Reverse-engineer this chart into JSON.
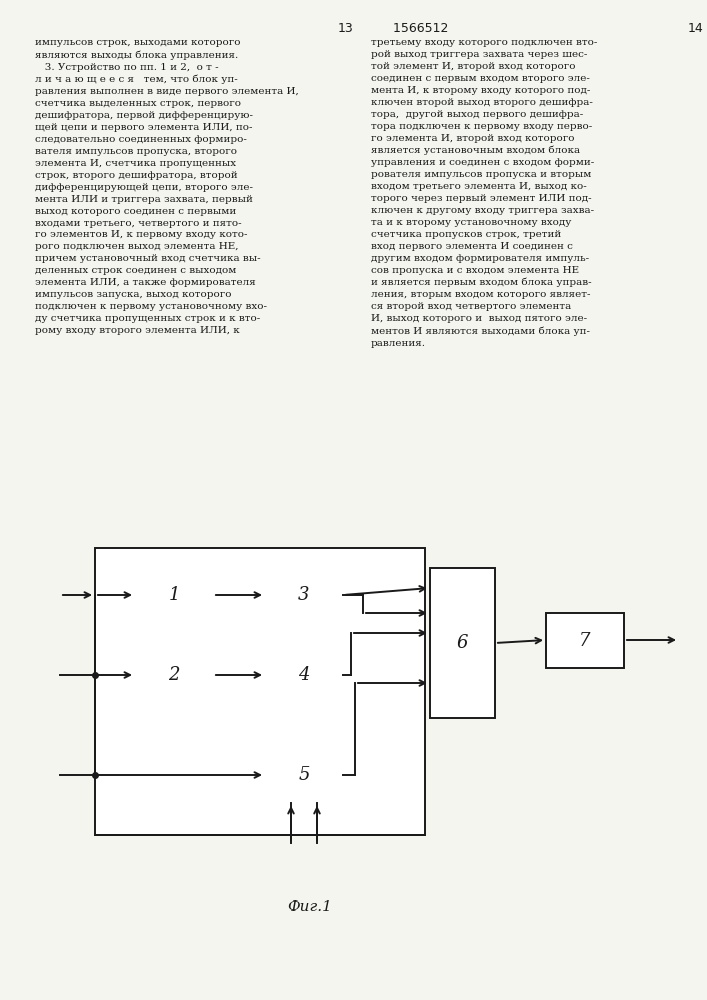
{
  "title": "Фиг.1",
  "bg_color": "#f5f5f0",
  "line_color": "#1a1a1a",
  "text_color": "#1a1a1a",
  "fig_width": 7.07,
  "fig_height": 10.0,
  "left_text": "импульсов строк, выходами которого\nявляются выходы блока управления.\n   3. Устройство по пп. 1 и 2,  о т -\nл и ч а ю щ е е с я   тем, что блок уп-\nравления выполнен в виде первого элемента И,\nсчетчика выделенных строк, первого\nдешифратора, первой дифференцирую-\nщей цепи и первого элемента ИЛИ, по-\nследовательно соединенных формиро-\nвателя импульсов пропуска, второго\nэлемента И, счетчика пропущенных\nстрок, второго дешифратора, второй\nдифференцирующей цепи, второго эле-\nмента ИЛИ и триггера захвата, первый\nвыход которого соединен с первыми\nвходами третьего, четвертого и пято-\nго элементов И, к первому входу кото-\nрого подключен выход элемента НЕ,\nпричем установочный вход счетчика вы-\nделенных строк соединен с выходом\nэлемента ИЛИ, а также формирователя\nимпульсов запуска, выход которого\nподключен к первому установочному вхо-\nду счетчика пропущенных строк и к вто-\nрому входу второго элемента ИЛИ, к",
  "right_text": "третьему входу которого подключен вто-\nрой выход триггера захвата через шес-\nтой элемент И, второй вход которого\nсоединен с первым входом второго эле-\nмента И, к второму входу которого под-\nключен второй выход второго дешифра-\nтора,  другой выход первого дешифра-\nтора подключен к первому входу перво-\nго элемента И, второй вход которого\nявляется установочным входом блока\nуправления и соединен с входом форми-\nрователя импульсов пропуска и вторым\nвходом третьего элемента И, выход ко-\nторого через первый элемент ИЛИ под-\nключен к другому входу триггера захва-\nта и к второму установочному входу\nсчетчика пропусков строк, третий\nвход первого элемента И соединен с\nдругим входом формирователя импуль-\nсов пропуска и с входом элемента НЕ\nи является первым входом блока управ-\nления, вторым входом которого являет-\nся второй вход четвертого элемента\nИ, выход которого и  выход пятого эле-\nментов И являются выходами блока уп-\nравления."
}
